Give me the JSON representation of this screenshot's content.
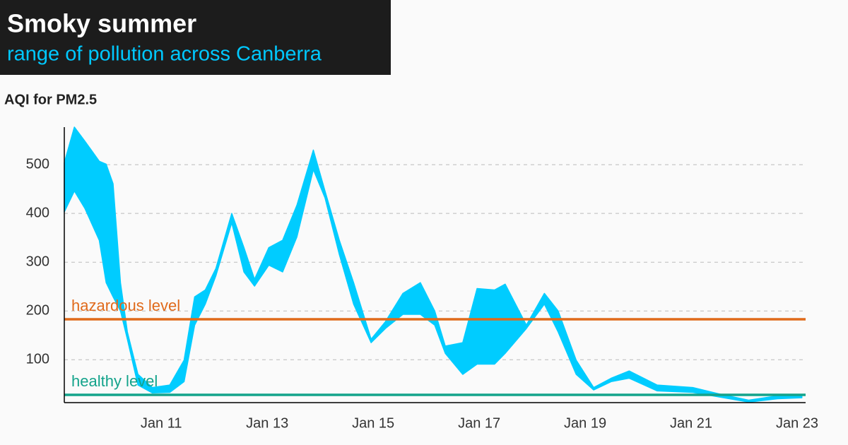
{
  "chart_data": {
    "type": "range-area",
    "title": "Smoky summer",
    "subtitle": "range of pollution across Canberra",
    "y_label": "AQI for PM2.5",
    "color": "#00ccff",
    "x": [
      9.17,
      9.36,
      9.56,
      9.83,
      9.96,
      10.09,
      10.23,
      10.36,
      10.56,
      10.83,
      11.16,
      11.43,
      11.63,
      11.83,
      12.03,
      12.33,
      12.56,
      12.76,
      13.03,
      13.29,
      13.56,
      13.87,
      14.09,
      14.36,
      14.63,
      14.96,
      15.23,
      15.56,
      15.89,
      16.16,
      16.36,
      16.69,
      16.96,
      17.29,
      17.49,
      17.89,
      18.23,
      18.49,
      18.83,
      19.16,
      19.49,
      19.83,
      20.36,
      21.03,
      21.56,
      22.09,
      22.63,
      23.09
    ],
    "high": [
      504,
      577,
      548,
      507,
      501,
      461,
      258,
      157,
      70,
      43,
      48,
      99,
      229,
      243,
      287,
      400,
      330,
      265,
      330,
      345,
      417,
      530,
      446,
      345,
      258,
      142,
      178,
      236,
      258,
      200,
      128,
      135,
      246,
      243,
      255,
      171,
      236,
      200,
      99,
      43,
      62,
      77,
      48,
      43,
      29,
      17,
      26,
      25
    ],
    "low": [
      403,
      446,
      410,
      345,
      258,
      229,
      200,
      142,
      48,
      32,
      33,
      55,
      171,
      214,
      272,
      381,
      280,
      251,
      294,
      280,
      352,
      490,
      432,
      316,
      214,
      135,
      164,
      193,
      193,
      171,
      113,
      70,
      91,
      91,
      113,
      164,
      214,
      157,
      70,
      38,
      55,
      62,
      36,
      33,
      23,
      13,
      20,
      22
    ],
    "xlim": [
      9.17,
      23.16
    ],
    "xticks": [
      {
        "value": 11,
        "label": "Jan 11"
      },
      {
        "value": 13,
        "label": "Jan 13"
      },
      {
        "value": 15,
        "label": "Jan 15"
      },
      {
        "value": 17,
        "label": "Jan 17"
      },
      {
        "value": 19,
        "label": "Jan 19"
      },
      {
        "value": 21,
        "label": "Jan 21"
      },
      {
        "value": 23,
        "label": "Jan 23"
      }
    ],
    "ylim": [
      12,
      577
    ],
    "yticks": [
      100,
      200,
      300,
      400,
      500
    ],
    "grid": true,
    "reference_lines": [
      {
        "label": "hazardous level",
        "value": 183,
        "color": "#e06a1b"
      },
      {
        "label": "healthy level",
        "value": 28,
        "color": "#13a38b"
      }
    ]
  }
}
